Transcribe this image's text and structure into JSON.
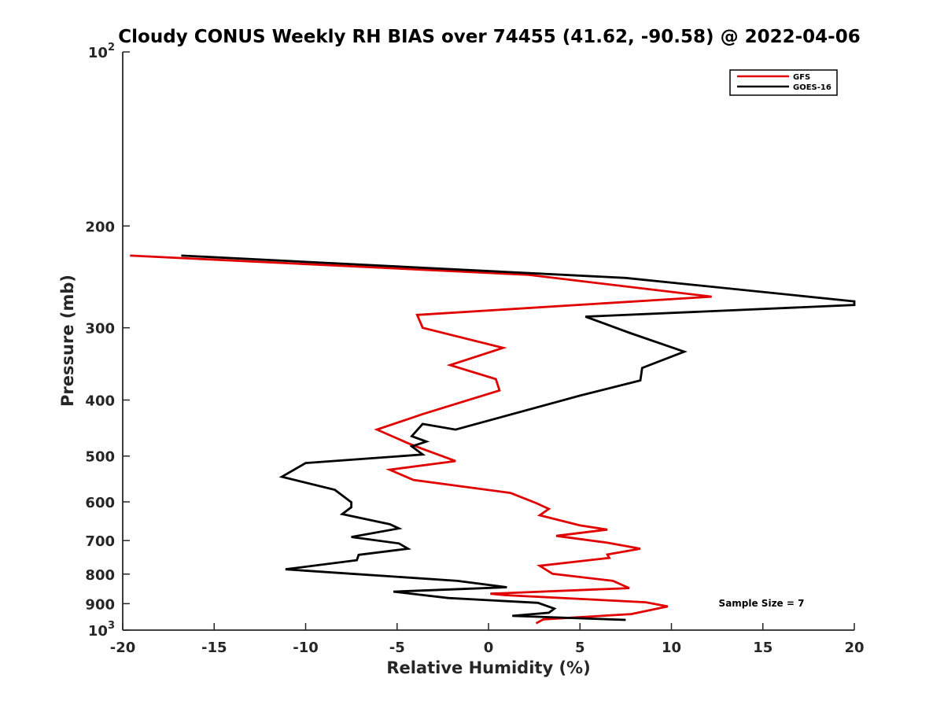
{
  "chart_data": {
    "type": "line",
    "title": "Cloudy CONUS Weekly RH BIAS over 74455 (41.62, -90.58) @ 2022-04-06",
    "xlabel": "Relative Humidity (%)",
    "ylabel": "Pressure (mb)",
    "xlim": [
      -20,
      20
    ],
    "ylim": [
      100,
      1000
    ],
    "y_scale": "log",
    "y_reversed": true,
    "x_ticks": [
      -20,
      -15,
      -10,
      -5,
      0,
      5,
      10,
      15,
      20
    ],
    "x_tick_labels": [
      "-20",
      "-15",
      "-10",
      "-5",
      "0",
      "5",
      "10",
      "15",
      "20"
    ],
    "y_ticks": [
      100,
      200,
      300,
      400,
      500,
      600,
      700,
      800,
      900,
      1000
    ],
    "y_tick_labels": [
      "10^2",
      "200",
      "300",
      "400",
      "500",
      "600",
      "700",
      "800",
      "900",
      "10^3"
    ],
    "legend_position": "top-right",
    "annotation": "Sample Size = 7",
    "series": [
      {
        "name": "GFS",
        "color": "#e00000",
        "points": [
          [
            -19.6,
            225
          ],
          [
            2.2,
            243
          ],
          [
            12.2,
            265
          ],
          [
            -3.9,
            285
          ],
          [
            -3.6,
            300
          ],
          [
            0.8,
            325
          ],
          [
            -2.1,
            348
          ],
          [
            0.4,
            368
          ],
          [
            0.6,
            385
          ],
          [
            -3.6,
            423
          ],
          [
            -6.1,
            450
          ],
          [
            -4.4,
            475
          ],
          [
            -3.6,
            486
          ],
          [
            -1.8,
            510
          ],
          [
            -5.4,
            528
          ],
          [
            -4.1,
            550
          ],
          [
            1.2,
            579
          ],
          [
            2.6,
            603
          ],
          [
            3.3,
            617
          ],
          [
            2.8,
            633
          ],
          [
            5.0,
            659
          ],
          [
            6.5,
            670
          ],
          [
            3.7,
            687
          ],
          [
            6.5,
            706
          ],
          [
            8.3,
            723
          ],
          [
            6.5,
            740
          ],
          [
            6.6,
            750
          ],
          [
            2.8,
            774
          ],
          [
            3.5,
            799
          ],
          [
            6.8,
            822
          ],
          [
            7.7,
            846
          ],
          [
            0.1,
            865
          ],
          [
            0.9,
            870
          ],
          [
            8.6,
            895
          ],
          [
            9.8,
            910
          ],
          [
            7.8,
            938
          ],
          [
            3.0,
            958
          ],
          [
            2.6,
            973
          ]
        ]
      },
      {
        "name": "GOES-16",
        "color": "#000000",
        "points": [
          [
            -16.8,
            225
          ],
          [
            7.5,
            246
          ],
          [
            20.0,
            270
          ],
          [
            20.0,
            274
          ],
          [
            5.3,
            287
          ],
          [
            7.7,
            306
          ],
          [
            10.7,
            330
          ],
          [
            8.4,
            352
          ],
          [
            8.3,
            370
          ],
          [
            5.0,
            393
          ],
          [
            -1.8,
            450
          ],
          [
            -3.6,
            440
          ],
          [
            -4.2,
            462
          ],
          [
            -3.4,
            472
          ],
          [
            -4.2,
            481
          ],
          [
            -3.6,
            497
          ],
          [
            -10.0,
            514
          ],
          [
            -11.3,
            543
          ],
          [
            -8.4,
            572
          ],
          [
            -7.5,
            601
          ],
          [
            -7.5,
            613
          ],
          [
            -8.0,
            630
          ],
          [
            -5.4,
            656
          ],
          [
            -4.9,
            667
          ],
          [
            -7.5,
            690
          ],
          [
            -4.9,
            708
          ],
          [
            -4.4,
            723
          ],
          [
            -7.1,
            741
          ],
          [
            -7.2,
            757
          ],
          [
            -11.1,
            785
          ],
          [
            -7.2,
            800
          ],
          [
            -1.7,
            822
          ],
          [
            1.0,
            843
          ],
          [
            -5.2,
            858
          ],
          [
            -2.2,
            880
          ],
          [
            2.7,
            897
          ],
          [
            3.6,
            918
          ],
          [
            3.3,
            933
          ],
          [
            1.3,
            945
          ],
          [
            7.5,
            960
          ]
        ]
      }
    ]
  }
}
